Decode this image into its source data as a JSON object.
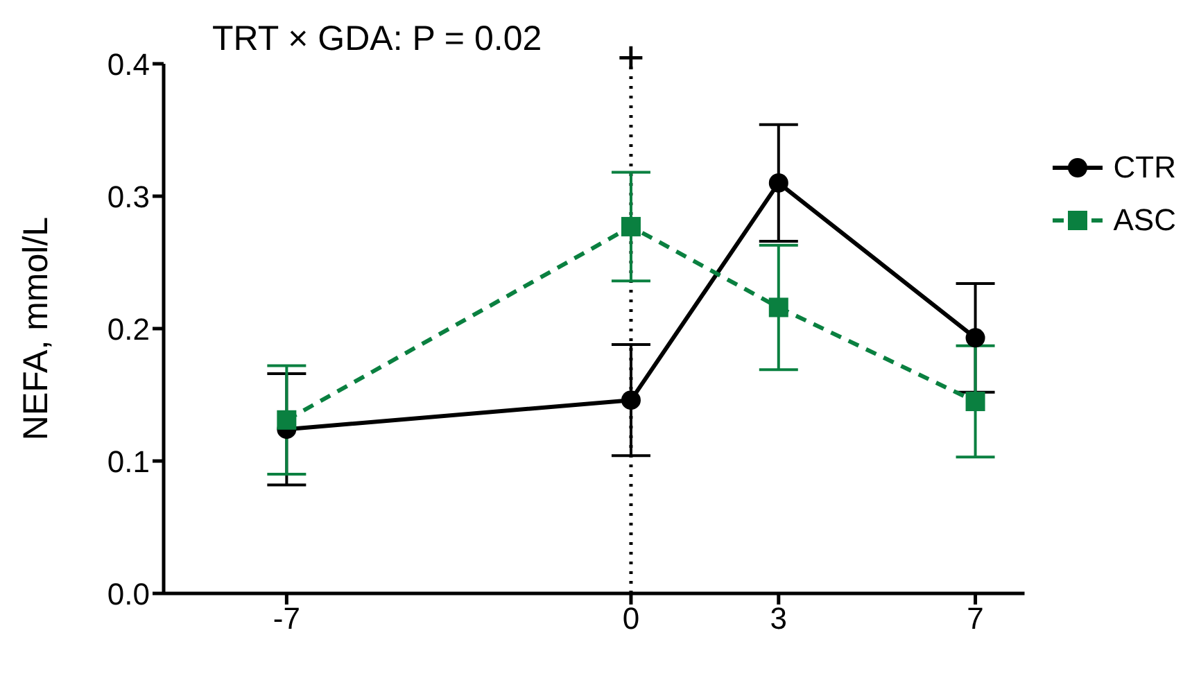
{
  "chart_data": {
    "type": "line",
    "title": "TRT × GDA: P = 0.02",
    "ylabel": "NEFA, mmol/L",
    "x": [
      -7,
      0,
      3,
      7
    ],
    "xlim": [
      -9.5,
      8
    ],
    "xticks": [
      -7,
      0,
      3,
      7
    ],
    "ylim": [
      0,
      0.4
    ],
    "yticks": [
      {
        "value": 0,
        "label": "0.0"
      },
      0.1,
      0.2,
      0.3,
      0.4
    ],
    "grid": false,
    "legend": "right",
    "ref_lines": [
      {
        "axis": "x",
        "value": 0,
        "label": "+",
        "line_style": "dotted",
        "color": "#000000"
      }
    ],
    "series": [
      {
        "name": "CTR",
        "color": "#000000",
        "marker": "circle",
        "line_style": "solid",
        "values": [
          0.124,
          0.146,
          0.31,
          0.193
        ],
        "errors": [
          0.042,
          0.042,
          0.044,
          0.041
        ]
      },
      {
        "name": "ASC",
        "color": "#0a8040",
        "marker": "square",
        "line_style": "dashed",
        "values": [
          0.131,
          0.277,
          0.216,
          0.145
        ],
        "errors": [
          0.041,
          0.041,
          0.047,
          0.042
        ]
      }
    ]
  }
}
